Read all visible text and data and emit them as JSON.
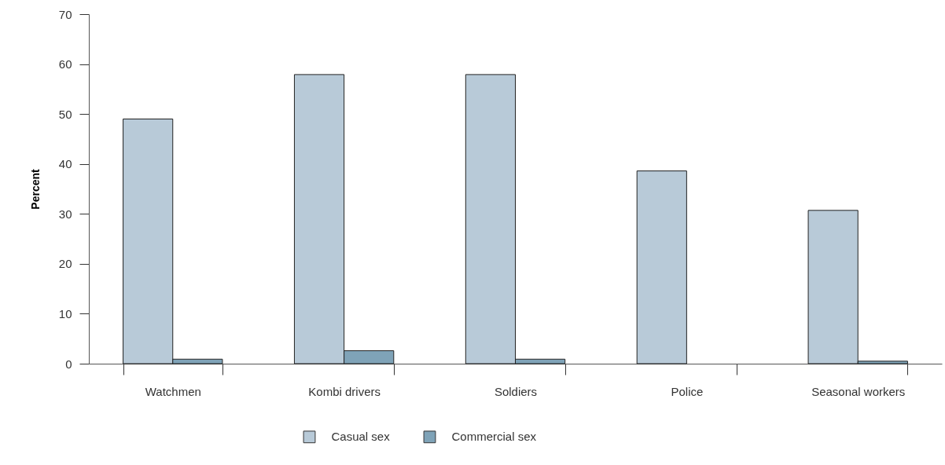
{
  "chart_data": {
    "type": "bar",
    "ylabel": "Percent",
    "categories": [
      "Watchmen",
      "Kombi drivers",
      "Soldiers",
      "Police",
      "Seasonal workers"
    ],
    "series": [
      {
        "name": "Casual sex",
        "color": "#b8cad8",
        "values": [
          49.0,
          57.9,
          57.9,
          38.6,
          30.7
        ]
      },
      {
        "name": "Commercial sex",
        "color": "#7fa3b8",
        "values": [
          0.9,
          2.6,
          0.9,
          null,
          0.5
        ]
      }
    ],
    "ylim": [
      0,
      70
    ],
    "yticks": [
      0,
      10,
      20,
      30,
      40,
      50,
      60,
      70
    ],
    "grid": false,
    "legend": "bottom"
  }
}
